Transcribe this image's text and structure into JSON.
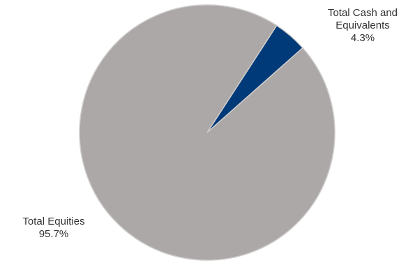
{
  "chart_data": {
    "type": "pie",
    "title": "",
    "slices": [
      {
        "name": "Total Cash and Equivalents",
        "value": 4.3,
        "label": "4.3%",
        "color": "#003A78"
      },
      {
        "name": "Total Equities",
        "value": 95.7,
        "label": "95.7%",
        "color": "#ABA8A7"
      }
    ],
    "labels": {
      "cash_line1": "Total Cash and",
      "cash_line2": "Equivalents",
      "cash_value": "4.3%",
      "equities_name": "Total Equities",
      "equities_value": "95.7%"
    },
    "start_angle_deg": -57,
    "legend": "none"
  }
}
